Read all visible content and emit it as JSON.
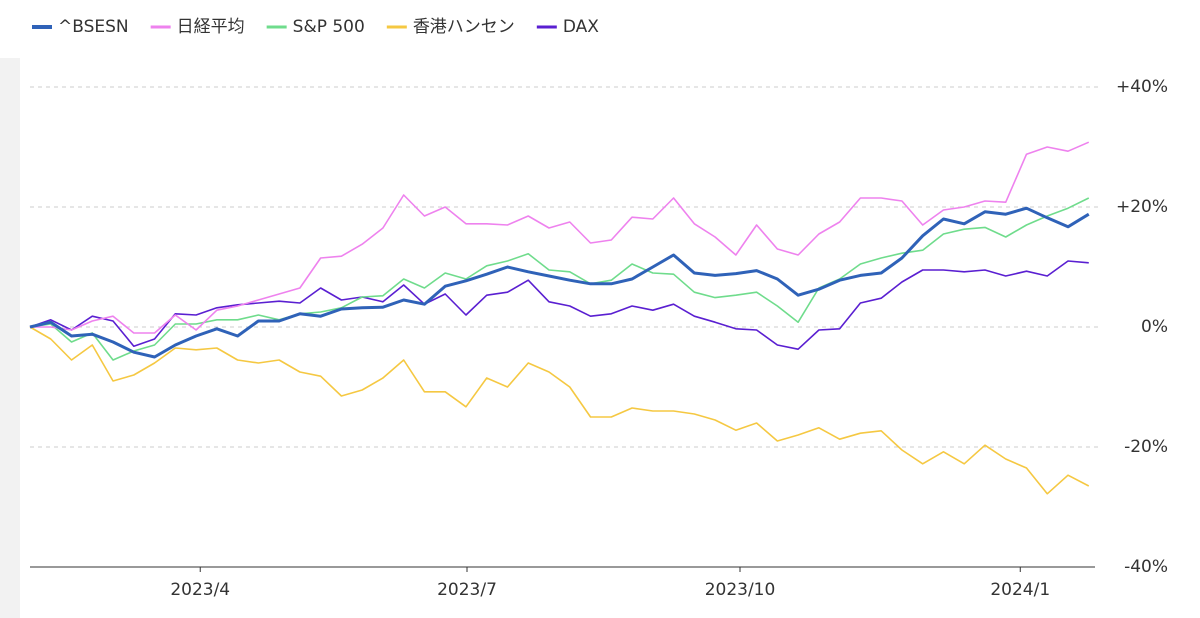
{
  "chart_data": {
    "type": "line",
    "series": [
      {
        "name": "^BSESN",
        "color": "#2f62b8",
        "values": [
          0,
          0.8,
          -1.5,
          -1.2,
          -2.5,
          -4.2,
          -5,
          -3,
          -1.5,
          -0.3,
          -1.5,
          1,
          1,
          2.2,
          1.8,
          3,
          3.2,
          3.3,
          4.5,
          3.8,
          6.8,
          7.7,
          8.8,
          10,
          9.2,
          8.5,
          7.8,
          7.2,
          7.2,
          8,
          10,
          12,
          9,
          8.6,
          8.9,
          9.4,
          8,
          5.3,
          6.3,
          7.8,
          8.6,
          9,
          11.5,
          15.2,
          18,
          17.2,
          19.2,
          18.8,
          19.8,
          18.2,
          16.7,
          18.8
        ]
      },
      {
        "name": "日経平均",
        "color": "#ee82ee",
        "values": [
          0,
          0,
          -0.5,
          1,
          1.8,
          -1,
          -1,
          2,
          -0.5,
          2.8,
          3.5,
          4.5,
          5.5,
          6.5,
          11.5,
          11.8,
          13.8,
          16.5,
          22,
          18.5,
          20,
          17.2,
          17.2,
          17,
          18.5,
          16.5,
          17.5,
          14,
          14.5,
          18.3,
          18,
          21.5,
          17.2,
          15,
          12,
          17,
          13,
          12,
          15.5,
          17.5,
          21.5,
          21.5,
          21,
          17,
          19.5,
          20,
          21,
          20.8,
          28.8,
          30,
          29.3,
          30.8
        ]
      },
      {
        "name": "S&P 500",
        "color": "#6fdc8c",
        "values": [
          0,
          0.5,
          -2.5,
          -1,
          -5.5,
          -4,
          -3,
          0.5,
          0.5,
          1.2,
          1.2,
          2,
          1.2,
          2.2,
          2.5,
          3.2,
          5,
          5.2,
          8,
          6.5,
          9,
          8,
          10.2,
          11,
          12.2,
          9.5,
          9.2,
          7.2,
          7.8,
          10.5,
          9,
          8.8,
          5.8,
          4.9,
          5.3,
          5.8,
          3.5,
          0.8,
          6.5,
          8,
          10.5,
          11.5,
          12.3,
          12.8,
          15.5,
          16.3,
          16.6,
          15,
          17,
          18.5,
          19.8,
          21.5
        ]
      },
      {
        "name": "香港ハンセン",
        "color": "#f5c842",
        "values": [
          0,
          -2,
          -5.5,
          -3,
          -9,
          -8,
          -6,
          -3.5,
          -3.8,
          -3.5,
          -5.5,
          -6,
          -5.5,
          -7.5,
          -8.2,
          -11.5,
          -10.5,
          -8.5,
          -5.5,
          -10.8,
          -10.8,
          -13.3,
          -8.5,
          -10,
          -6,
          -7.5,
          -10,
          -15,
          -15,
          -13.5,
          -14,
          -14,
          -14.5,
          -15.5,
          -17.2,
          -16,
          -19,
          -18,
          -16.8,
          -18.7,
          -17.7,
          -17.3,
          -20.5,
          -22.8,
          -20.8,
          -22.8,
          -19.7,
          -22,
          -23.5,
          -27.8,
          -24.7,
          -26.5
        ]
      },
      {
        "name": "DAX",
        "color": "#5a1fd1",
        "values": [
          0,
          1.2,
          -0.5,
          1.8,
          1,
          -3.2,
          -2,
          2.2,
          2,
          3.2,
          3.7,
          4,
          4.3,
          4,
          6.5,
          4.5,
          5,
          4.2,
          7,
          3.8,
          5.5,
          2,
          5.3,
          5.8,
          7.8,
          4.2,
          3.5,
          1.8,
          2.2,
          3.5,
          2.8,
          3.8,
          1.8,
          0.8,
          -0.3,
          -0.5,
          -3,
          -3.7,
          -0.5,
          -0.3,
          4,
          4.8,
          7.5,
          9.5,
          9.5,
          9.2,
          9.5,
          8.5,
          9.3,
          8.5,
          11,
          10.7
        ]
      }
    ],
    "xlim": [
      0,
      51.3
    ],
    "xticks": [
      {
        "value": 8.2,
        "label": "2023/4"
      },
      {
        "value": 21.05,
        "label": "2023/7"
      },
      {
        "value": 34.2,
        "label": "2023/10"
      },
      {
        "value": 47.7,
        "label": "2024/1"
      }
    ],
    "ylim": [
      -40,
      40
    ],
    "yticks": [
      {
        "value": 40,
        "label": "+40%"
      },
      {
        "value": 20,
        "label": "+20%"
      },
      {
        "value": 0,
        "label": "0%"
      },
      {
        "value": -20,
        "label": "-20%"
      },
      {
        "value": -40,
        "label": "-40%"
      }
    ],
    "grid": true,
    "legend": "top-left"
  }
}
